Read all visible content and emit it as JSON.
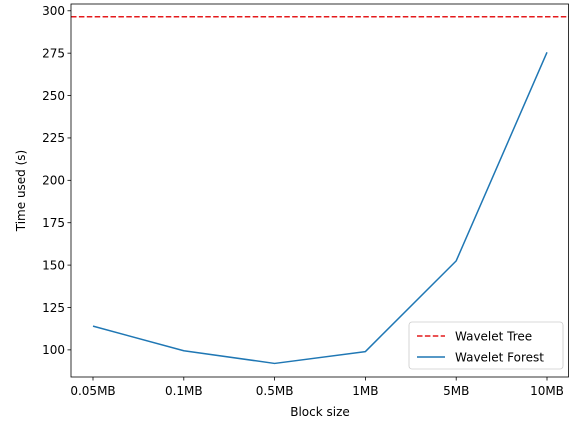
{
  "chart_data": {
    "type": "line",
    "title": "",
    "xlabel": "Block size",
    "ylabel": "Time used (s)",
    "categories": [
      "0.05MB",
      "0.1MB",
      "0.5MB",
      "1MB",
      "5MB",
      "10MB"
    ],
    "ylim": [
      84,
      304
    ],
    "yticks": [
      100,
      125,
      150,
      175,
      200,
      225,
      250,
      275,
      300
    ],
    "grid": false,
    "legend_position": "lower-right",
    "series": [
      {
        "name": "Wavelet Tree",
        "style": "dashed",
        "color": "#e41a1c",
        "values": [
          296.5,
          296.5,
          296.5,
          296.5,
          296.5,
          296.5
        ]
      },
      {
        "name": "Wavelet Forest",
        "style": "solid",
        "color": "#1f77b4",
        "values": [
          114,
          99.5,
          92,
          99,
          152.5,
          275.5
        ]
      }
    ]
  }
}
